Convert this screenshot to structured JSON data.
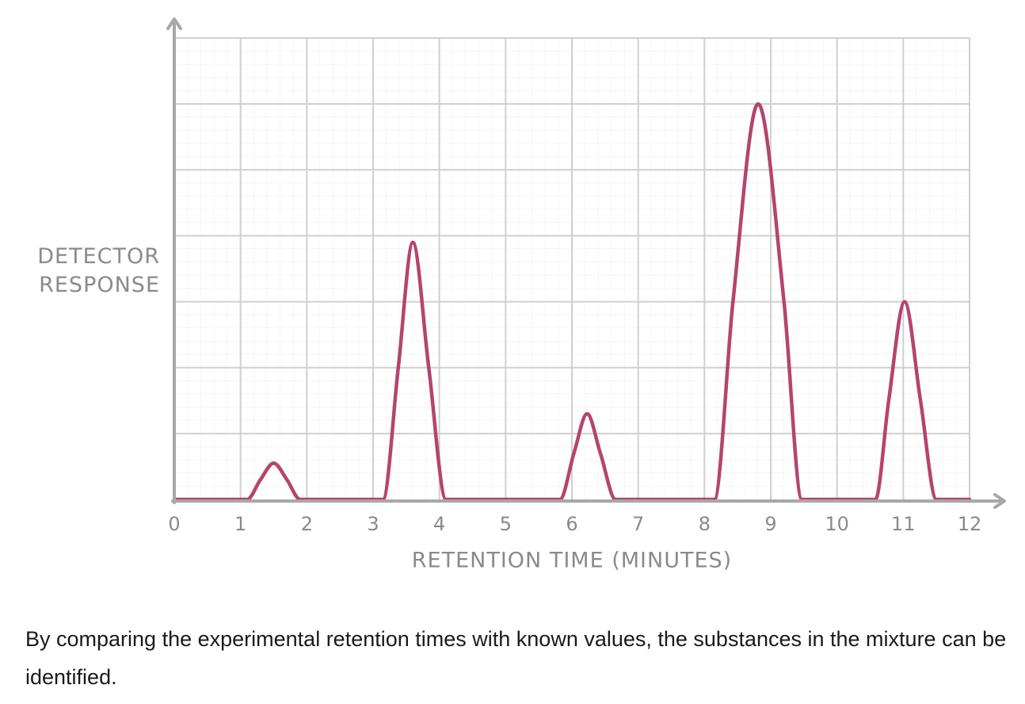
{
  "chart_data": {
    "type": "line",
    "ylabel": "DETECTOR RESPONSE",
    "xlabel": "RETENTION TIME (MINUTES)",
    "x": [
      0,
      1.1,
      1.3,
      1.5,
      1.7,
      1.9,
      3.15,
      3.38,
      3.6,
      3.84,
      4.1,
      5.82,
      6.03,
      6.23,
      6.43,
      6.66,
      8.15,
      8.43,
      8.81,
      9.2,
      9.47,
      10.58,
      10.78,
      11.02,
      11.26,
      11.5,
      12
    ],
    "values": [
      0,
      0,
      0.3,
      0.55,
      0.3,
      0,
      0,
      2,
      3.9,
      2,
      0,
      0,
      0.7,
      1.3,
      0.7,
      0,
      0,
      3,
      6,
      3,
      0,
      0,
      1.5,
      3,
      1.5,
      0,
      0
    ],
    "color": "#b5446e",
    "xlim": [
      0,
      12
    ],
    "xticks": [
      0,
      1,
      2,
      3,
      4,
      5,
      6,
      7,
      8,
      9,
      10,
      11,
      12
    ],
    "ylim": [
      0,
      7
    ],
    "ygrid": [
      1,
      2,
      3,
      4,
      5,
      6,
      7
    ],
    "grid": true
  },
  "caption": "By comparing the experimental retention times with known values, the substances in the mixture can be identified."
}
